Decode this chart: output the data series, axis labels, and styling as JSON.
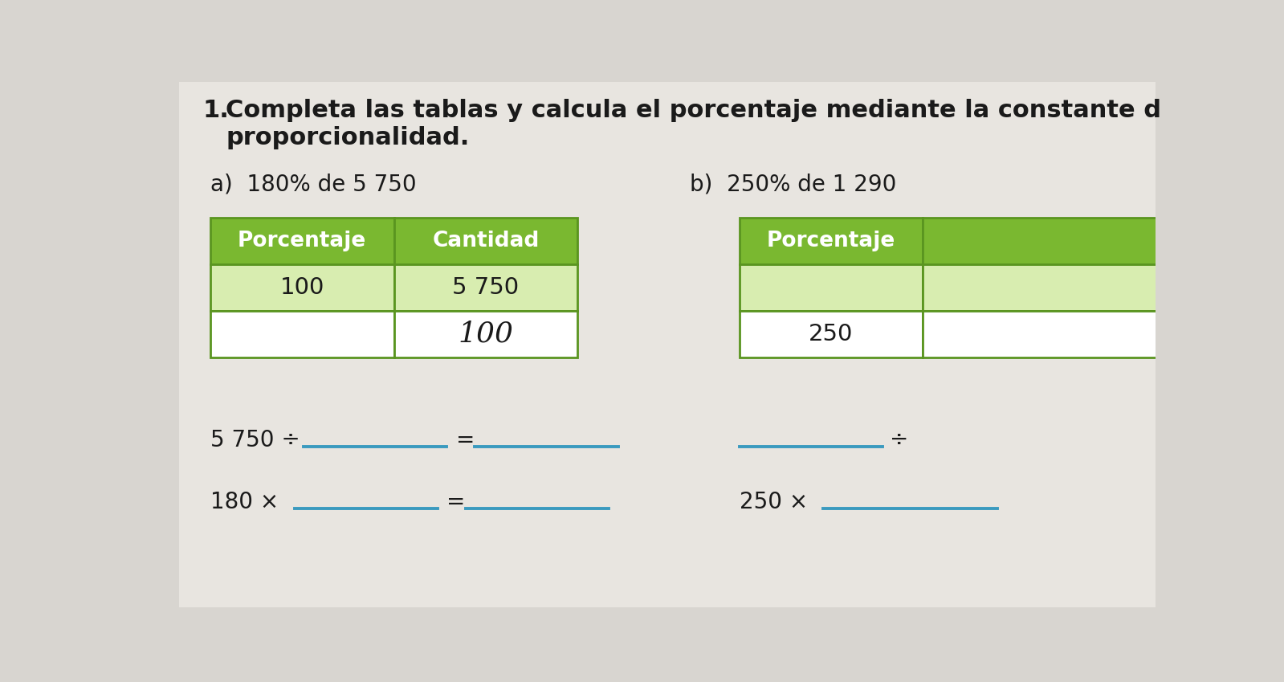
{
  "background_color": "#d8d5d0",
  "page_color": "#e8e5e0",
  "title_number": "1.",
  "title_text": "Completa las tablas y calcula el porcentaje mediante la constante d",
  "title_text2": "proporcionalidad.",
  "subtitle_a": "a)  180% de 5 750",
  "subtitle_b": "b)  250% de 1 290",
  "header_color": "#7ab830",
  "header_text_color": "#ffffff",
  "row1_color": "#d8edb0",
  "row2_color": "#ffffff",
  "table_a_headers": [
    "Porcentaje",
    "Cantidad"
  ],
  "table_a_row1": [
    "100",
    "5 750"
  ],
  "table_a_row2": [
    "",
    "100"
  ],
  "table_b_header": "Porcentaje",
  "table_b_row1": "",
  "table_b_row2": "250",
  "equation_a1": "5 750 ÷",
  "equation_a2": "180 ×",
  "equation_b1_div": "÷",
  "equation_b2": "250 ×",
  "line_color": "#3a9abf",
  "text_color": "#1a1a1a",
  "font_size_title": 22,
  "font_size_subtitle": 20,
  "font_size_table": 19,
  "font_size_eq": 20,
  "font_size_handwritten": 26
}
